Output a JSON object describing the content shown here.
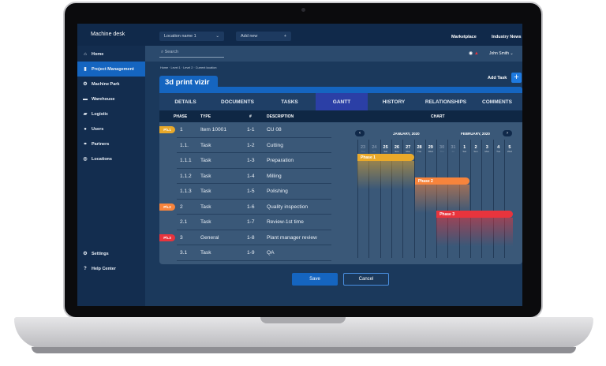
{
  "app": {
    "title": "Machine desk",
    "location_select": "Location  name 1",
    "add_new": "Add new",
    "top_links": [
      "Marketplace",
      "Industry News"
    ]
  },
  "sidebar": {
    "items": [
      {
        "label": "Home",
        "icon": "home-icon"
      },
      {
        "label": "Project Management",
        "icon": "clipboard-icon",
        "active": true
      },
      {
        "label": "Machine Park",
        "icon": "machine-icon"
      },
      {
        "label": "Warehouse",
        "icon": "warehouse-icon"
      },
      {
        "label": "Logistic",
        "icon": "truck-icon"
      },
      {
        "label": "Users",
        "icon": "user-icon"
      },
      {
        "label": "Partners",
        "icon": "partners-icon"
      },
      {
        "label": "Locations",
        "icon": "location-icon"
      }
    ],
    "bottom": [
      {
        "label": "Settings",
        "icon": "gear-icon"
      },
      {
        "label": "Help Center",
        "icon": "help-icon"
      }
    ]
  },
  "search": {
    "placeholder": "Search"
  },
  "user": {
    "name": "John Smith"
  },
  "breadcrumb": "Home · Level 1 · Level 2 · Current location",
  "project": {
    "title": "3d print vizir",
    "add_task": "Add Task"
  },
  "tabs": [
    "DETAILS",
    "DOCUMENTS",
    "TASKS",
    "GANTT",
    "HISTORY",
    "RELATIONSHIPS",
    "COMMENTS"
  ],
  "active_tab": "GANTT",
  "table": {
    "headers": [
      "PHASE",
      "TYPE",
      "#",
      "DESCRIPTION"
    ],
    "rows": [
      {
        "badge": "Ph.1",
        "phase": "1",
        "type": "Item 10001",
        "num": "1-1",
        "desc": "CU 08"
      },
      {
        "badge": "",
        "phase": "1.1.",
        "type": "Task",
        "num": "1-2",
        "desc": "Cutting"
      },
      {
        "badge": "",
        "phase": "1.1.1",
        "type": "Task",
        "num": "1-3",
        "desc": "Preparation"
      },
      {
        "badge": "",
        "phase": "1.1.2",
        "type": "Task",
        "num": "1-4",
        "desc": "Milling"
      },
      {
        "badge": "",
        "phase": "1.1.3",
        "type": "Task",
        "num": "1-5",
        "desc": "Polishing"
      },
      {
        "badge": "Ph.2",
        "phase": "2",
        "type": "Task",
        "num": "1-6",
        "desc": "Quality inspection"
      },
      {
        "badge": "",
        "phase": "2.1",
        "type": "Task",
        "num": "1-7",
        "desc": "Review-1st time"
      },
      {
        "badge": "Ph.3",
        "phase": "3",
        "type": "General",
        "num": "1-8",
        "desc": "Plant manager review"
      },
      {
        "badge": "",
        "phase": "3.1",
        "type": "Task",
        "num": "1-9",
        "desc": "QA"
      }
    ]
  },
  "chart": {
    "header": "CHART",
    "months": [
      "JANUARY, 2020",
      "FEBRUARY, 2020"
    ],
    "days": [
      {
        "d": "23",
        "w": "Thu",
        "muted": true
      },
      {
        "d": "24",
        "w": "Fri",
        "muted": true
      },
      {
        "d": "25",
        "w": "Sat"
      },
      {
        "d": "26",
        "w": "Sun"
      },
      {
        "d": "27",
        "w": "Mon"
      },
      {
        "d": "28",
        "w": "Tue"
      },
      {
        "d": "29",
        "w": "Wed"
      },
      {
        "d": "30",
        "w": "Thu",
        "muted": true
      },
      {
        "d": "31",
        "w": "Fri",
        "muted": true
      },
      {
        "d": "1",
        "w": "Sat"
      },
      {
        "d": "2",
        "w": "Sun"
      },
      {
        "d": "3",
        "w": "Mon"
      },
      {
        "d": "4",
        "w": "Tue"
      },
      {
        "d": "5",
        "w": "Wed"
      }
    ],
    "bars": [
      {
        "label": "Phase 1",
        "start": 0,
        "end": 5,
        "color": "#e9a92a",
        "row": 0
      },
      {
        "label": "Phase 2",
        "start": 5.1,
        "end": 9.9,
        "color": "#f7843c",
        "row": 1
      },
      {
        "label": "Phase 3",
        "start": 7,
        "end": 13.8,
        "color": "#e8343d",
        "row": 2
      }
    ]
  },
  "badge_colors": {
    "Ph.1": "#e9a92a",
    "Ph.2": "#f7843c",
    "Ph.3": "#e8343d"
  },
  "buttons": {
    "save": "Save",
    "cancel": "Cancel"
  }
}
